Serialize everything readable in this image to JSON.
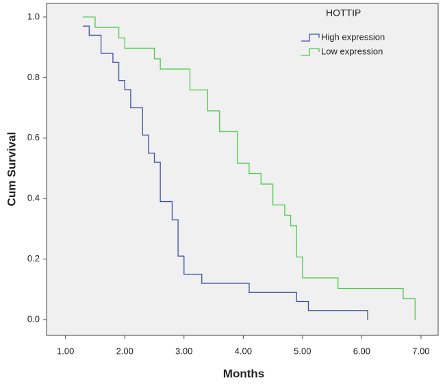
{
  "chart_data": {
    "type": "step",
    "xlabel": "Months",
    "ylabel": "Cum Survival",
    "legend_title": "HOTTIP",
    "xlim": [
      0.68,
      7.29
    ],
    "ylim": [
      -0.052,
      1.045
    ],
    "xticks": [
      {
        "value": 1,
        "label": "1.00"
      },
      {
        "value": 2,
        "label": "2.00"
      },
      {
        "value": 3,
        "label": "3.00"
      },
      {
        "value": 4,
        "label": "4.00"
      },
      {
        "value": 5,
        "label": "5.00"
      },
      {
        "value": 6,
        "label": "6.00"
      },
      {
        "value": 7,
        "label": "7.00"
      }
    ],
    "yticks": [
      {
        "value": 0,
        "label": "0.0"
      },
      0.2,
      0.4,
      0.6,
      0.8,
      {
        "value": 1,
        "label": "1.0"
      }
    ],
    "series": [
      {
        "name": "High expression",
        "color": "#3a4fa8",
        "x": [
          1.3,
          1.4,
          1.6,
          1.8,
          1.9,
          2.0,
          2.1,
          2.3,
          2.4,
          2.5,
          2.6,
          2.8,
          2.9,
          3.0,
          3.3,
          4.1,
          4.9,
          5.1,
          6.1
        ],
        "values": [
          0.97,
          0.94,
          0.88,
          0.85,
          0.79,
          0.76,
          0.7,
          0.61,
          0.55,
          0.52,
          0.39,
          0.33,
          0.21,
          0.15,
          0.12,
          0.09,
          0.06,
          0.03,
          0.0
        ]
      },
      {
        "name": "Low expression",
        "color": "#4ec94e",
        "x": [
          1.3,
          1.5,
          1.9,
          2.0,
          2.5,
          2.6,
          3.1,
          3.4,
          3.6,
          3.9,
          4.1,
          4.3,
          4.5,
          4.7,
          4.8,
          4.9,
          5.0,
          5.6,
          6.7,
          6.9
        ],
        "values": [
          1.0,
          0.966,
          0.931,
          0.897,
          0.862,
          0.828,
          0.759,
          0.69,
          0.621,
          0.517,
          0.483,
          0.448,
          0.379,
          0.345,
          0.31,
          0.207,
          0.138,
          0.103,
          0.069,
          0.0
        ]
      }
    ]
  }
}
